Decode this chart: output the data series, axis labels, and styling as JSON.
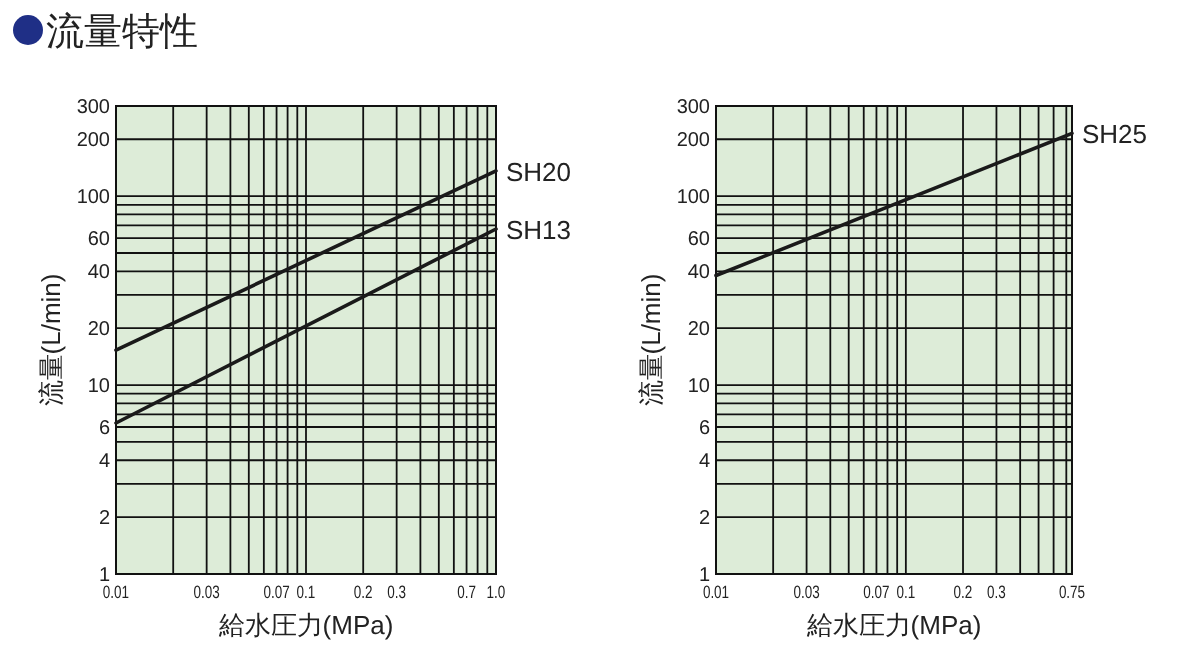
{
  "chart_data": [
    {
      "type": "line",
      "title": "流量特性",
      "xlabel": "給水圧力(MPa)",
      "ylabel": "流量(L/min)",
      "log": "xy",
      "grid": true,
      "line_style": "solid",
      "marker": "none",
      "x": [
        0.01,
        1.0
      ],
      "xlim": [
        0.01,
        1.0
      ],
      "xticks": [
        0.01,
        {
          "value": 0.02,
          "label": null
        },
        0.03,
        {
          "value": 0.04,
          "label": null
        },
        {
          "value": 0.05,
          "label": null
        },
        {
          "value": 0.06,
          "label": null
        },
        0.07,
        {
          "value": 0.08,
          "label": null
        },
        {
          "value": 0.09,
          "label": null
        },
        0.1,
        0.2,
        0.3,
        {
          "value": 0.4,
          "label": null
        },
        {
          "value": 0.5,
          "label": null
        },
        {
          "value": 0.6,
          "label": null
        },
        0.7,
        {
          "value": 0.8,
          "label": null
        },
        {
          "value": 0.9,
          "label": null
        },
        {
          "value": 1.0,
          "label": "1.0"
        }
      ],
      "ylim": [
        1,
        300
      ],
      "yticks": [
        1,
        2,
        {
          "value": 3,
          "label": null
        },
        4,
        {
          "value": 5,
          "label": null
        },
        6,
        {
          "value": 7,
          "label": null
        },
        {
          "value": 8,
          "label": null
        },
        {
          "value": 9,
          "label": null
        },
        10,
        20,
        {
          "value": 30,
          "label": null
        },
        40,
        {
          "value": 50,
          "label": null
        },
        60,
        {
          "value": 70,
          "label": null
        },
        {
          "value": 80,
          "label": null
        },
        {
          "value": 90,
          "label": null
        },
        100,
        200,
        300
      ],
      "series": [
        {
          "name": "SH20",
          "color": "#1a1a1a",
          "values": [
            15.3,
            136
          ]
        },
        {
          "name": "SH13",
          "color": "#1a1a1a",
          "values": [
            6.3,
            67
          ]
        }
      ]
    },
    {
      "type": "line",
      "xlabel": "給水圧力(MPa)",
      "ylabel": "流量(L/min)",
      "log": "xy",
      "grid": true,
      "line_style": "solid",
      "marker": "none",
      "x": [
        0.01,
        0.75
      ],
      "xlim": [
        0.01,
        0.75
      ],
      "xticks": [
        0.01,
        {
          "value": 0.02,
          "label": null
        },
        0.03,
        {
          "value": 0.04,
          "label": null
        },
        {
          "value": 0.05,
          "label": null
        },
        {
          "value": 0.06,
          "label": null
        },
        0.07,
        {
          "value": 0.08,
          "label": null
        },
        {
          "value": 0.09,
          "label": null
        },
        0.1,
        0.2,
        0.3,
        {
          "value": 0.4,
          "label": null
        },
        {
          "value": 0.5,
          "label": null
        },
        {
          "value": 0.6,
          "label": null
        },
        {
          "value": 0.7,
          "label": null
        },
        0.75
      ],
      "ylim": [
        1,
        300
      ],
      "yticks": [
        1,
        2,
        {
          "value": 3,
          "label": null
        },
        4,
        {
          "value": 5,
          "label": null
        },
        6,
        {
          "value": 7,
          "label": null
        },
        {
          "value": 8,
          "label": null
        },
        {
          "value": 9,
          "label": null
        },
        10,
        20,
        {
          "value": 30,
          "label": null
        },
        40,
        {
          "value": 50,
          "label": null
        },
        60,
        {
          "value": 70,
          "label": null
        },
        {
          "value": 80,
          "label": null
        },
        {
          "value": 90,
          "label": null
        },
        100,
        200,
        300
      ],
      "series": [
        {
          "name": "SH25",
          "color": "#1a1a1a",
          "values": [
            38,
            215
          ]
        }
      ]
    }
  ]
}
